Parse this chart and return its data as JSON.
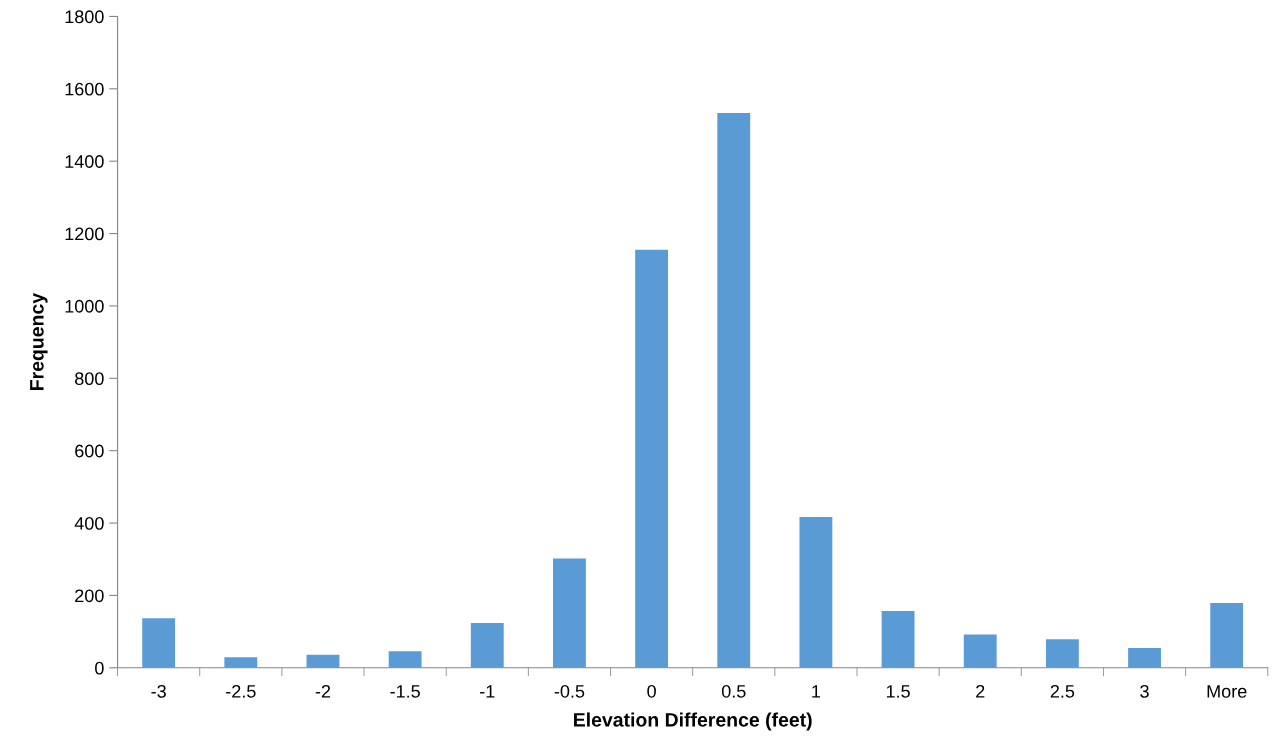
{
  "chart_data": {
    "type": "bar",
    "xlabel": "Elevation Difference (feet)",
    "ylabel": "Frequency",
    "categories": [
      "-3",
      "-2.5",
      "-2",
      "-1.5",
      "-1",
      "-0.5",
      "0",
      "0.5",
      "1",
      "1.5",
      "2",
      "2.5",
      "3",
      "More"
    ],
    "values": [
      137,
      29,
      36,
      46,
      124,
      302,
      1155,
      1533,
      417,
      157,
      92,
      79,
      55,
      179
    ],
    "color": "#5b9bd5",
    "ylim": [
      0,
      1800
    ],
    "yticks": [
      0,
      200,
      400,
      600,
      800,
      1000,
      1200,
      1400,
      1600,
      1800
    ],
    "grid": false,
    "legend": false
  }
}
